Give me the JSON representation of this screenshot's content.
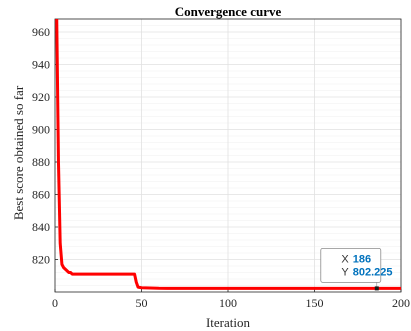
{
  "chart_data": {
    "type": "line",
    "title": "Convergence curve",
    "xlabel": "Iteration",
    "ylabel": "Best score obtained so far",
    "xlim": [
      0,
      200
    ],
    "ylim": [
      800,
      968
    ],
    "x_ticks": [
      0,
      50,
      100,
      150,
      200
    ],
    "y_ticks": [
      820,
      840,
      860,
      880,
      900,
      920,
      940,
      960
    ],
    "grid": true,
    "series": [
      {
        "color": "#ff0000",
        "x": [
          1,
          2,
          3,
          4,
          5,
          6,
          7,
          8,
          9,
          10,
          12,
          15,
          20,
          30,
          40,
          46,
          47,
          48,
          50,
          55,
          60,
          65,
          70,
          80,
          100,
          150,
          186,
          200
        ],
        "y": [
          968,
          880,
          830,
          817,
          815,
          814,
          813,
          812,
          812,
          811,
          811,
          811,
          811,
          811,
          811,
          811,
          806,
          803,
          802.6,
          802.5,
          802.3,
          802.25,
          802.225,
          802.225,
          802.225,
          802.225,
          802.225,
          802.225
        ]
      }
    ],
    "datatip": {
      "x_label": "X",
      "x_value": "186",
      "y_label": "Y",
      "y_value": "802.225",
      "x": 186,
      "y": 802.225,
      "value_color": "#0072bd"
    }
  }
}
